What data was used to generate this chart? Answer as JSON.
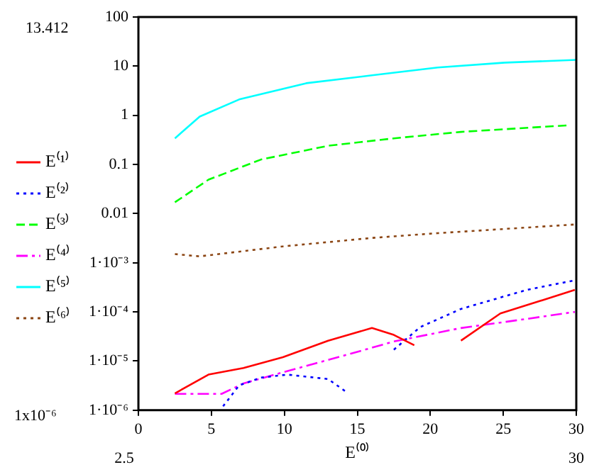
{
  "chart_data": {
    "type": "line",
    "xlabel": "E⁽⁰⁾",
    "log": "y",
    "grid": false,
    "legend": "left",
    "xlim": [
      0,
      30
    ],
    "xticks": [
      0,
      5,
      10,
      15,
      20,
      25,
      30
    ],
    "ylim": [
      1e-06,
      100
    ],
    "yticks": [
      {
        "value": 1e-06,
        "label": "1·10⁻⁶"
      },
      {
        "value": 1e-05,
        "label": "1·10⁻⁵"
      },
      {
        "value": 0.0001,
        "label": "1·10⁻⁴"
      },
      {
        "value": 0.001,
        "label": "1·10⁻³"
      },
      0.01,
      0.1,
      1,
      10,
      100
    ],
    "series": [
      {
        "name": "E⁽¹⁾",
        "color": "#ff0000",
        "line_style": "solid",
        "x": [
          2.5,
          4.8,
          7.2,
          9.9,
          13,
          16,
          17.5,
          18.9,
          20.5,
          22.1,
          24.8,
          29.9
        ],
        "values": [
          2.2e-06,
          5.3e-06,
          7.2e-06,
          1.2e-05,
          2.6e-05,
          4.7e-05,
          3.4e-05,
          2.1e-05,
          null,
          2.6e-05,
          9.3e-05,
          0.00028
        ]
      },
      {
        "name": "E⁽²⁾",
        "color": "#0000ff",
        "line_style": "dotted",
        "x": [
          5.8,
          6.9,
          8.4,
          10.2,
          13,
          14.2,
          15.8,
          17.5,
          19.3,
          22.1,
          26.6,
          29.9
        ],
        "values": [
          1.2e-06,
          3.2e-06,
          4.6e-06,
          5.3e-06,
          4.3e-06,
          2.4e-06,
          null,
          1.7e-05,
          4.9e-05,
          0.000115,
          0.00028,
          0.00044
        ]
      },
      {
        "name": "E⁽³⁾",
        "color": "#00ff00",
        "line_style": "dashed",
        "x": [
          2.5,
          4.8,
          8.4,
          13,
          17.5,
          22.1,
          29.6
        ],
        "values": [
          0.017,
          0.049,
          0.126,
          0.24,
          0.34,
          0.46,
          0.63
        ]
      },
      {
        "name": "E⁽⁴⁾",
        "color": "#ff00ff",
        "line_style": "dashdot",
        "x": [
          2.5,
          5.7,
          7.2,
          9.9,
          14.5,
          17.5,
          22.1,
          26.6,
          29.9
        ],
        "values": [
          2.15e-06,
          2.15e-06,
          3.5e-06,
          5.9e-06,
          1.4e-05,
          2.5e-05,
          4.7e-05,
          7.2e-05,
          0.0001
        ]
      },
      {
        "name": "E⁽⁵⁾",
        "color": "#00ffff",
        "line_style": "solid",
        "x": [
          2.5,
          4.2,
          6.9,
          11.5,
          16,
          20.5,
          25.1,
          30
        ],
        "values": [
          0.34,
          0.94,
          2.1,
          4.5,
          6.5,
          9.4,
          11.8,
          13.4
        ]
      },
      {
        "name": "E⁽⁶⁾",
        "color": "#8b4513",
        "line_style": "dotted",
        "x": [
          2.5,
          4.2,
          9.9,
          16,
          20.5,
          29.9
        ],
        "values": [
          0.0015,
          0.00135,
          0.00215,
          0.0032,
          0.004,
          0.006
        ]
      }
    ],
    "annotations": [
      "13.412",
      "1x10⁻⁶",
      "2.5",
      "30"
    ]
  }
}
